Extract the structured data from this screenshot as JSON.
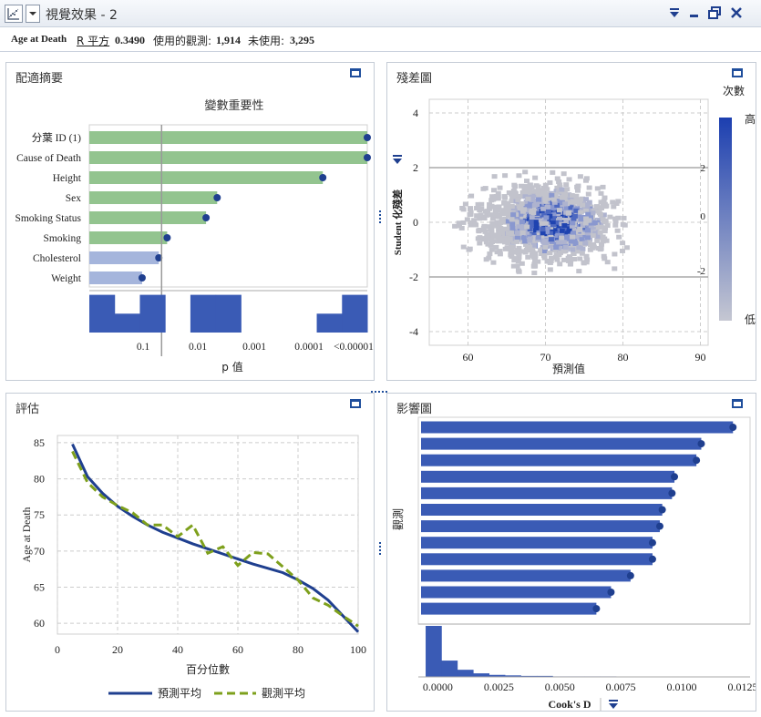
{
  "window": {
    "title": "視覺效果 - 2"
  },
  "stats": {
    "response": "Age at Death",
    "rsq_label": "R 平方",
    "rsq_value": "0.3490",
    "used_label": "使用的觀測:",
    "used_value": "1,914",
    "unused_label": "未使用:",
    "unused_value": "3,295"
  },
  "panels": {
    "fit_summary": "配適摘要",
    "residual": "殘差圖",
    "assessment": "評估",
    "influence": "影響圖"
  },
  "colors": {
    "green_bar": "#93c48f",
    "lavender_bar": "#a5b5dc",
    "navy": "#1f3f8f",
    "bar_blue": "#3a5bb5",
    "olive": "#7ea01c",
    "grid": "#cccccc"
  },
  "chart_data": [
    {
      "type": "bar",
      "title": "變數重要性",
      "xlabel": "p 值",
      "x_ticks": [
        "0.1",
        "0.01",
        "0.001",
        "0.0001",
        "<0.00001"
      ],
      "categories": [
        "分葉 ID (1)",
        "Cause of Death",
        "Height",
        "Sex",
        "Smoking Status",
        "Smoking",
        "Cholesterol",
        "Weight"
      ],
      "values": [
        1.0,
        1.0,
        0.84,
        0.46,
        0.42,
        0.28,
        0.25,
        0.19
      ],
      "significant": [
        true,
        true,
        true,
        true,
        true,
        true,
        false,
        false
      ],
      "threshold_marker": 0.26,
      "histogram": [
        0.9,
        0.45,
        0.9,
        0.0,
        0.9,
        0.9,
        0.0,
        0.0,
        0.0,
        0.45,
        0.9
      ],
      "grid": false
    },
    {
      "type": "heatmap",
      "title": "",
      "xlabel": "預測值",
      "ylabel": "Student 化殘差",
      "xlim": [
        55,
        91
      ],
      "ylim": [
        -4.5,
        4.5
      ],
      "x_ticks": [
        60,
        70,
        80,
        90
      ],
      "y_ticks": [
        4,
        2,
        0,
        -2,
        -4
      ],
      "legend_title": "次數",
      "legend_high": "高",
      "legend_low": "低",
      "legend_ticks": [
        2,
        0,
        -2
      ],
      "reference_lines": [
        2,
        -2
      ],
      "grid": true
    },
    {
      "type": "line",
      "title": "",
      "xlabel": "百分位數",
      "ylabel": "Age at Death",
      "xlim": [
        0,
        100
      ],
      "ylim": [
        58.5,
        86
      ],
      "x_ticks": [
        0,
        20,
        40,
        60,
        80,
        100
      ],
      "y_ticks": [
        85,
        80,
        75,
        70,
        65,
        60
      ],
      "series": [
        {
          "name": "預測平均",
          "x": [
            5,
            10,
            15,
            20,
            25,
            30,
            35,
            40,
            45,
            50,
            55,
            60,
            65,
            70,
            75,
            80,
            85,
            90,
            95,
            100
          ],
          "values": [
            84.8,
            80.3,
            78.0,
            76.2,
            74.8,
            73.6,
            72.6,
            71.8,
            71.0,
            70.3,
            69.6,
            68.9,
            68.2,
            67.6,
            67.0,
            66.0,
            64.8,
            63.2,
            61.0,
            58.8
          ]
        },
        {
          "name": "觀測平均",
          "x": [
            5,
            10,
            15,
            20,
            25,
            30,
            35,
            40,
            45,
            50,
            55,
            60,
            65,
            70,
            75,
            80,
            85,
            90,
            95,
            100
          ],
          "values": [
            83.8,
            79.5,
            77.5,
            76.3,
            75.3,
            73.6,
            73.6,
            72.0,
            73.6,
            69.7,
            70.6,
            68.0,
            69.8,
            69.6,
            67.8,
            66.0,
            63.5,
            62.5,
            61.0,
            59.6
          ]
        }
      ],
      "legend_position": "bottom",
      "grid": true
    },
    {
      "type": "bar",
      "title": "",
      "xlabel": "Cook's D",
      "ylabel": "觀測",
      "xlim": [
        -0.0008,
        0.0128
      ],
      "x_ticks": [
        "0.0000",
        "0.0025",
        "0.0050",
        "0.0075",
        "0.0100",
        "0.0125"
      ],
      "values": [
        0.0121,
        0.0108,
        0.0106,
        0.0097,
        0.0096,
        0.0092,
        0.0091,
        0.0088,
        0.0088,
        0.0079,
        0.0071,
        0.0065
      ],
      "histogram": [
        1.0,
        0.32,
        0.14,
        0.07,
        0.04,
        0.03,
        0.02,
        0.02,
        0.01,
        0.01,
        0.01,
        0.01,
        0.005,
        0.005,
        0.005,
        0.005,
        0.005,
        0.005,
        0.005,
        0.005
      ],
      "grid": false
    }
  ]
}
